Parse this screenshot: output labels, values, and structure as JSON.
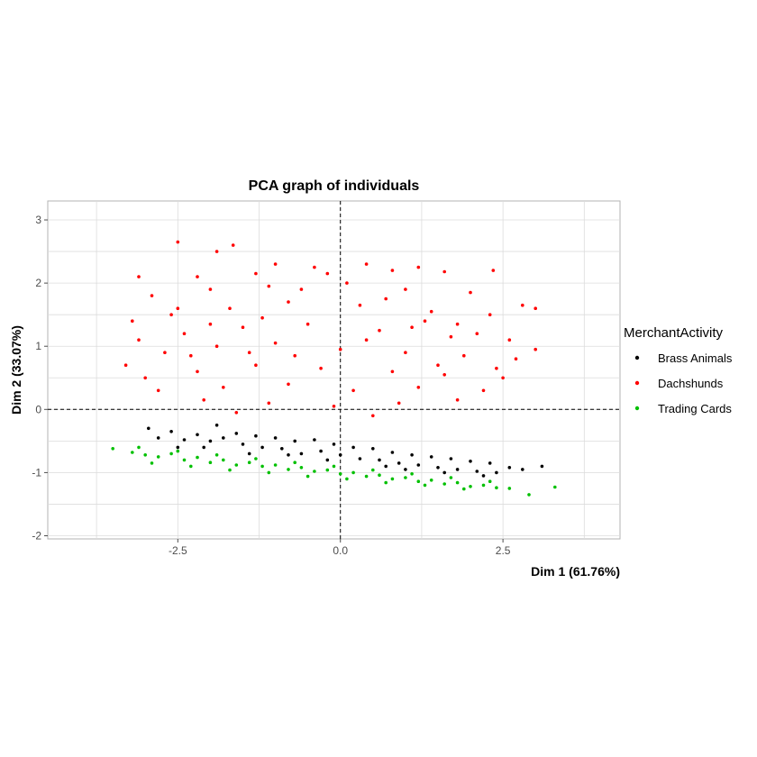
{
  "chart_data": {
    "type": "scatter",
    "title": "PCA graph of individuals",
    "xlabel": "Dim 1 (61.76%)",
    "ylabel": "Dim 2 (33.07%)",
    "xlim": [
      -4.5,
      4.3
    ],
    "ylim": [
      -2.05,
      3.3
    ],
    "x_ticks": [
      -2.5,
      0.0,
      2.5
    ],
    "x_tick_labels": [
      "-2.5",
      "0.0",
      "2.5"
    ],
    "y_ticks": [
      -2,
      -1,
      0,
      1,
      2,
      3
    ],
    "y_tick_labels": [
      "-2",
      "-1",
      "0",
      "1",
      "2",
      "3"
    ],
    "grid": true,
    "reference_lines": {
      "x": 0,
      "y": 0,
      "style": "dashed"
    },
    "legend": {
      "title": "MerchantActivity",
      "position": "right"
    },
    "series": [
      {
        "name": "Brass Animals",
        "color": "#000000",
        "points": [
          [
            -2.95,
            -0.3
          ],
          [
            -2.8,
            -0.45
          ],
          [
            -2.6,
            -0.35
          ],
          [
            -2.4,
            -0.48
          ],
          [
            -2.2,
            -0.4
          ],
          [
            -2.0,
            -0.5
          ],
          [
            -1.9,
            -0.25
          ],
          [
            -1.8,
            -0.45
          ],
          [
            -1.6,
            -0.38
          ],
          [
            -1.5,
            -0.55
          ],
          [
            -1.3,
            -0.42
          ],
          [
            -1.2,
            -0.6
          ],
          [
            -1.0,
            -0.45
          ],
          [
            -0.9,
            -0.62
          ],
          [
            -0.7,
            -0.5
          ],
          [
            -0.6,
            -0.7
          ],
          [
            -0.4,
            -0.48
          ],
          [
            -0.3,
            -0.66
          ],
          [
            -0.1,
            -0.55
          ],
          [
            0.0,
            -0.72
          ],
          [
            0.2,
            -0.6
          ],
          [
            0.3,
            -0.78
          ],
          [
            0.5,
            -0.62
          ],
          [
            0.6,
            -0.8
          ],
          [
            0.8,
            -0.68
          ],
          [
            0.9,
            -0.85
          ],
          [
            1.1,
            -0.72
          ],
          [
            1.2,
            -0.88
          ],
          [
            1.4,
            -0.75
          ],
          [
            1.5,
            -0.92
          ],
          [
            1.7,
            -0.78
          ],
          [
            1.8,
            -0.95
          ],
          [
            2.0,
            -0.82
          ],
          [
            2.1,
            -0.98
          ],
          [
            2.3,
            -0.85
          ],
          [
            2.4,
            -1.0
          ],
          [
            2.6,
            -0.92
          ],
          [
            2.8,
            -0.95
          ],
          [
            3.1,
            -0.9
          ],
          [
            -2.5,
            -0.6
          ],
          [
            -1.4,
            -0.7
          ],
          [
            -0.2,
            -0.8
          ],
          [
            1.0,
            -0.95
          ],
          [
            2.2,
            -1.05
          ],
          [
            -2.1,
            -0.6
          ],
          [
            0.7,
            -0.9
          ],
          [
            1.6,
            -1.0
          ],
          [
            -0.8,
            -0.72
          ]
        ]
      },
      {
        "name": "Dachshunds",
        "color": "#ff0000",
        "points": [
          [
            -2.5,
            2.65
          ],
          [
            -1.65,
            2.6
          ],
          [
            -1.9,
            2.5
          ],
          [
            -1.0,
            2.3
          ],
          [
            -0.4,
            2.25
          ],
          [
            0.4,
            2.3
          ],
          [
            1.2,
            2.25
          ],
          [
            2.35,
            2.2
          ],
          [
            -3.1,
            2.1
          ],
          [
            -2.2,
            2.1
          ],
          [
            -1.3,
            2.15
          ],
          [
            -0.2,
            2.15
          ],
          [
            0.8,
            2.2
          ],
          [
            1.6,
            2.18
          ],
          [
            -2.9,
            1.8
          ],
          [
            -2.0,
            1.9
          ],
          [
            -1.1,
            1.95
          ],
          [
            0.1,
            2.0
          ],
          [
            1.0,
            1.9
          ],
          [
            2.0,
            1.85
          ],
          [
            3.0,
            1.6
          ],
          [
            2.8,
            1.65
          ],
          [
            -3.2,
            1.4
          ],
          [
            -2.6,
            1.5
          ],
          [
            -1.7,
            1.6
          ],
          [
            -0.8,
            1.7
          ],
          [
            0.3,
            1.65
          ],
          [
            1.4,
            1.55
          ],
          [
            2.3,
            1.5
          ],
          [
            -3.1,
            1.1
          ],
          [
            -2.4,
            1.2
          ],
          [
            -1.5,
            1.3
          ],
          [
            -0.5,
            1.35
          ],
          [
            0.6,
            1.25
          ],
          [
            1.7,
            1.15
          ],
          [
            2.6,
            1.1
          ],
          [
            3.0,
            0.95
          ],
          [
            -3.3,
            0.7
          ],
          [
            -2.7,
            0.9
          ],
          [
            -1.9,
            1.0
          ],
          [
            -1.0,
            1.05
          ],
          [
            0.0,
            0.95
          ],
          [
            1.0,
            0.9
          ],
          [
            1.9,
            0.85
          ],
          [
            2.7,
            0.8
          ],
          [
            -3.0,
            0.5
          ],
          [
            -2.2,
            0.6
          ],
          [
            -1.3,
            0.7
          ],
          [
            -0.3,
            0.65
          ],
          [
            0.8,
            0.6
          ],
          [
            1.6,
            0.55
          ],
          [
            2.5,
            0.5
          ],
          [
            -2.8,
            0.3
          ],
          [
            -1.8,
            0.35
          ],
          [
            -0.8,
            0.4
          ],
          [
            0.2,
            0.3
          ],
          [
            1.2,
            0.35
          ],
          [
            2.2,
            0.3
          ],
          [
            -2.1,
            0.15
          ],
          [
            -1.1,
            0.1
          ],
          [
            -0.1,
            0.05
          ],
          [
            0.9,
            0.1
          ],
          [
            1.8,
            0.15
          ],
          [
            -1.6,
            -0.05
          ],
          [
            0.5,
            -0.1
          ],
          [
            -2.5,
            1.6
          ],
          [
            -0.6,
            1.9
          ],
          [
            1.3,
            1.4
          ],
          [
            2.1,
            1.2
          ],
          [
            -1.4,
            0.9
          ],
          [
            0.4,
            1.1
          ],
          [
            1.5,
            0.7
          ],
          [
            -2.3,
            0.85
          ],
          [
            -0.7,
            0.85
          ],
          [
            1.1,
            1.3
          ],
          [
            2.4,
            0.65
          ],
          [
            -1.2,
            1.45
          ],
          [
            0.7,
            1.75
          ],
          [
            -2.0,
            1.35
          ],
          [
            1.8,
            1.35
          ]
        ]
      },
      {
        "name": "Trading Cards",
        "color": "#00c000",
        "points": [
          [
            -3.5,
            -0.62
          ],
          [
            -3.2,
            -0.68
          ],
          [
            -3.0,
            -0.72
          ],
          [
            -2.8,
            -0.75
          ],
          [
            -2.6,
            -0.7
          ],
          [
            -2.4,
            -0.8
          ],
          [
            -2.2,
            -0.76
          ],
          [
            -2.0,
            -0.84
          ],
          [
            -1.8,
            -0.8
          ],
          [
            -1.6,
            -0.88
          ],
          [
            -1.4,
            -0.84
          ],
          [
            -1.2,
            -0.9
          ],
          [
            -1.0,
            -0.88
          ],
          [
            -0.8,
            -0.95
          ],
          [
            -0.6,
            -0.92
          ],
          [
            -0.4,
            -0.98
          ],
          [
            -0.2,
            -0.96
          ],
          [
            0.0,
            -1.02
          ],
          [
            0.2,
            -1.0
          ],
          [
            0.4,
            -1.06
          ],
          [
            0.6,
            -1.04
          ],
          [
            0.8,
            -1.1
          ],
          [
            1.0,
            -1.08
          ],
          [
            1.2,
            -1.14
          ],
          [
            1.4,
            -1.12
          ],
          [
            1.6,
            -1.18
          ],
          [
            1.8,
            -1.16
          ],
          [
            2.0,
            -1.22
          ],
          [
            2.2,
            -1.2
          ],
          [
            2.4,
            -1.24
          ],
          [
            2.6,
            -1.25
          ],
          [
            2.9,
            -1.35
          ],
          [
            3.3,
            -1.23
          ],
          [
            -2.9,
            -0.85
          ],
          [
            -2.3,
            -0.9
          ],
          [
            -1.7,
            -0.96
          ],
          [
            -1.1,
            -1.0
          ],
          [
            -0.5,
            -1.06
          ],
          [
            0.1,
            -1.1
          ],
          [
            0.7,
            -1.16
          ],
          [
            1.3,
            -1.2
          ],
          [
            1.9,
            -1.26
          ],
          [
            -3.1,
            -0.6
          ],
          [
            -2.5,
            -0.66
          ],
          [
            -1.9,
            -0.72
          ],
          [
            -1.3,
            -0.78
          ],
          [
            -0.7,
            -0.84
          ],
          [
            -0.1,
            -0.9
          ],
          [
            0.5,
            -0.96
          ],
          [
            1.1,
            -1.02
          ],
          [
            1.7,
            -1.08
          ],
          [
            2.3,
            -1.14
          ]
        ]
      }
    ]
  }
}
